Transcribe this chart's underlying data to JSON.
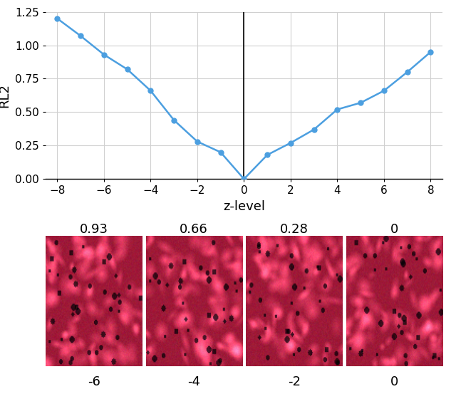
{
  "x_values": [
    -8,
    -7,
    -6,
    -5,
    -4,
    -3,
    -2,
    -1,
    0,
    1,
    2,
    3,
    4,
    5,
    6,
    7,
    8
  ],
  "y_values": [
    1.2,
    1.07,
    0.93,
    0.82,
    0.66,
    0.44,
    0.28,
    0.2,
    0.0,
    0.18,
    0.27,
    0.37,
    0.52,
    0.57,
    0.66,
    0.8,
    0.95
  ],
  "line_color": "#4C9FE0",
  "marker_color": "#4C9FE0",
  "ylabel": "RL2",
  "xlabel": "z-level",
  "ylim": [
    0.0,
    1.25
  ],
  "xlim": [
    -8.5,
    8.5
  ],
  "yticks": [
    0.0,
    0.25,
    0.5,
    0.75,
    1.0,
    1.25
  ],
  "xticks": [
    -8,
    -6,
    -4,
    -2,
    0,
    2,
    4,
    6,
    8
  ],
  "grid_color": "#d0d0d0",
  "background_color": "#ffffff",
  "vline_x": 0,
  "image_labels_top": [
    "0.93",
    "0.66",
    "0.28",
    "0"
  ],
  "image_labels_bottom": [
    "-6",
    "-4",
    "-2",
    "0"
  ],
  "axis_fontsize": 13,
  "tick_fontsize": 11,
  "label_fontsize": 13
}
